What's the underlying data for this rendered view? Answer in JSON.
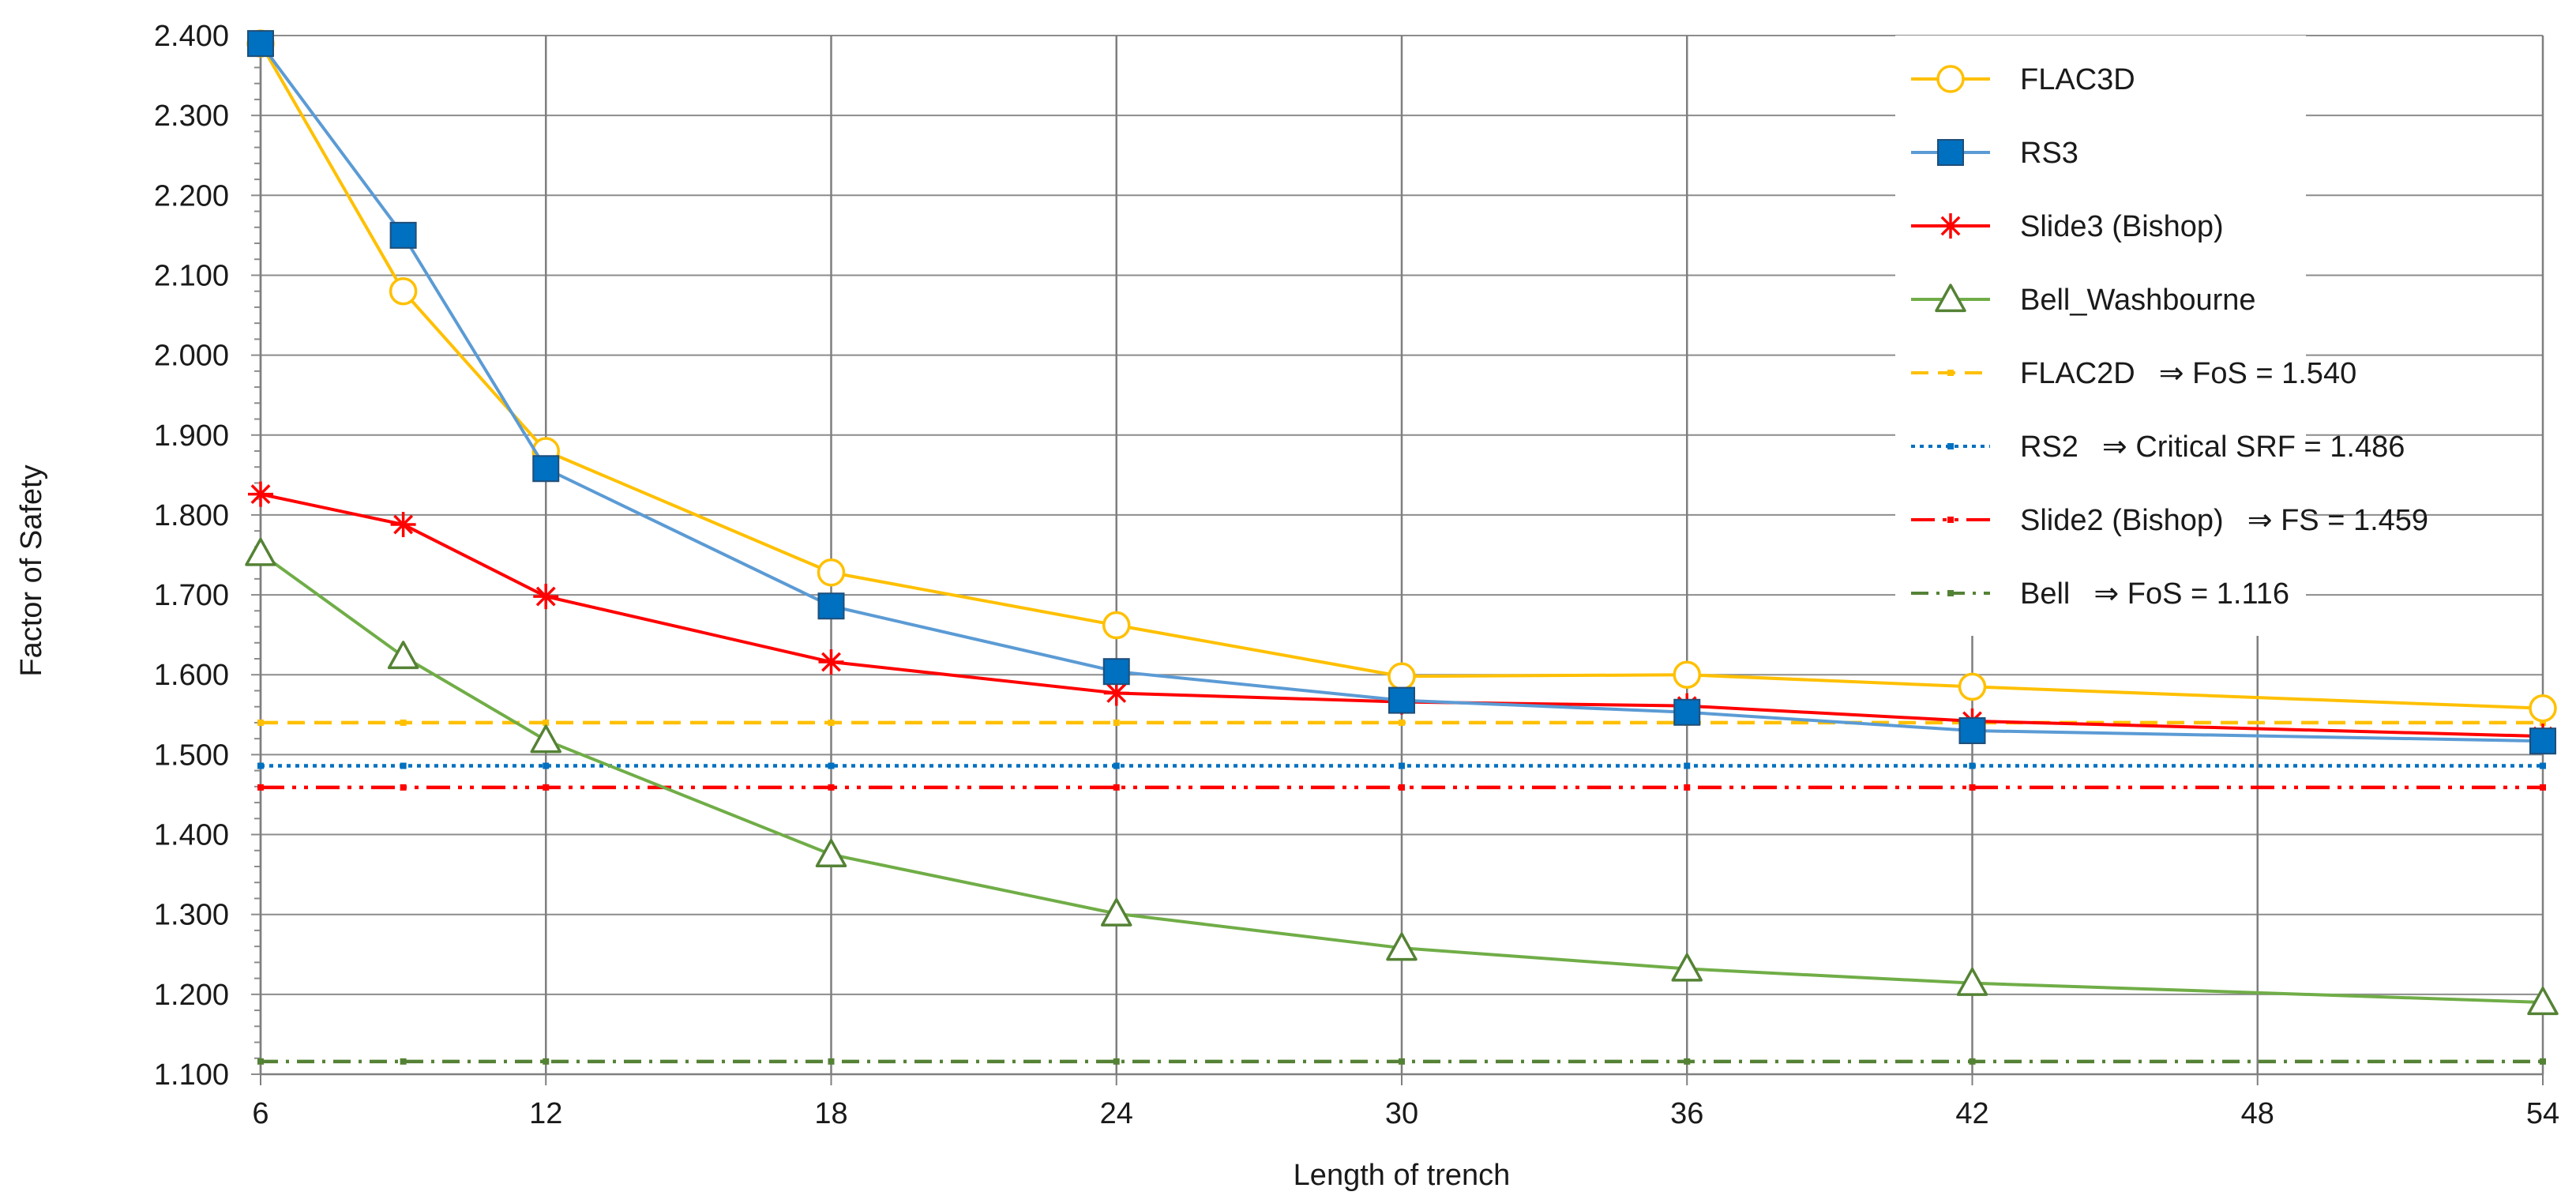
{
  "chart_data": {
    "type": "line",
    "xlabel": "Length of trench",
    "ylabel": "Factor of Safety",
    "xlim": [
      6,
      54
    ],
    "ylim": [
      1.1,
      2.4
    ],
    "x_ticks": [
      "6",
      "12",
      "18",
      "24",
      "30",
      "36",
      "42",
      "48",
      "54"
    ],
    "y_ticks": [
      "2.400",
      "2.300",
      "2.200",
      "2.100",
      "2.000",
      "1.900",
      "1.800",
      "1.700",
      "1.600",
      "1.500",
      "1.400",
      "1.300",
      "1.200",
      "1.100"
    ],
    "grid": true,
    "legend_position": "top-right",
    "series": [
      {
        "name": "FLAC3D",
        "color": "#FFC000",
        "marker": "circle-open",
        "line": "solid",
        "x": [
          6,
          9,
          12,
          18,
          24,
          30,
          36,
          42,
          54
        ],
        "values": [
          2.39,
          2.08,
          1.88,
          1.728,
          1.662,
          1.598,
          1.6,
          1.585,
          1.558
        ]
      },
      {
        "name": "RS3",
        "color": "#5B9BD5",
        "marker_color": "#0070C0",
        "marker": "square-filled",
        "line": "solid",
        "x": [
          6,
          9,
          12,
          18,
          24,
          30,
          36,
          42,
          54
        ],
        "values": [
          2.39,
          2.15,
          1.858,
          1.686,
          1.604,
          1.568,
          1.553,
          1.53,
          1.517
        ]
      },
      {
        "name": "Slide3 (Bishop)",
        "color": "#FF0000",
        "marker": "star",
        "line": "solid",
        "x": [
          6,
          9,
          12,
          18,
          24,
          30,
          36,
          42,
          54
        ],
        "values": [
          1.826,
          1.788,
          1.698,
          1.616,
          1.577,
          1.566,
          1.561,
          1.542,
          1.523
        ]
      },
      {
        "name": "Bell_Washbourne",
        "color": "#70AD47",
        "marker_color": "#548235",
        "marker": "triangle-open",
        "line": "solid",
        "x": [
          6,
          9,
          12,
          18,
          24,
          30,
          36,
          42,
          54
        ],
        "values": [
          1.752,
          1.623,
          1.518,
          1.375,
          1.301,
          1.258,
          1.232,
          1.214,
          1.19
        ]
      },
      {
        "name": "FLAC2D",
        "note": "⇒ FoS = 1.540",
        "color": "#FFC000",
        "marker": "dot",
        "line": "dash",
        "x": [
          6,
          54
        ],
        "values": [
          1.54,
          1.54
        ]
      },
      {
        "name": "RS2",
        "note": "⇒ Critical SRF = 1.486",
        "color": "#0070C0",
        "marker": "dot",
        "line": "dot",
        "x": [
          6,
          54
        ],
        "values": [
          1.486,
          1.486
        ]
      },
      {
        "name": "Slide2 (Bishop)",
        "note": "⇒ FS = 1.459",
        "color": "#FF0000",
        "marker": "dot",
        "line": "dashdotdot",
        "x": [
          6,
          54
        ],
        "values": [
          1.459,
          1.459
        ]
      },
      {
        "name": "Bell",
        "note": "⇒ FoS = 1.116",
        "color": "#548235",
        "marker": "dot",
        "line": "dashdot",
        "x": [
          6,
          54
        ],
        "values": [
          1.116,
          1.116
        ]
      }
    ]
  }
}
